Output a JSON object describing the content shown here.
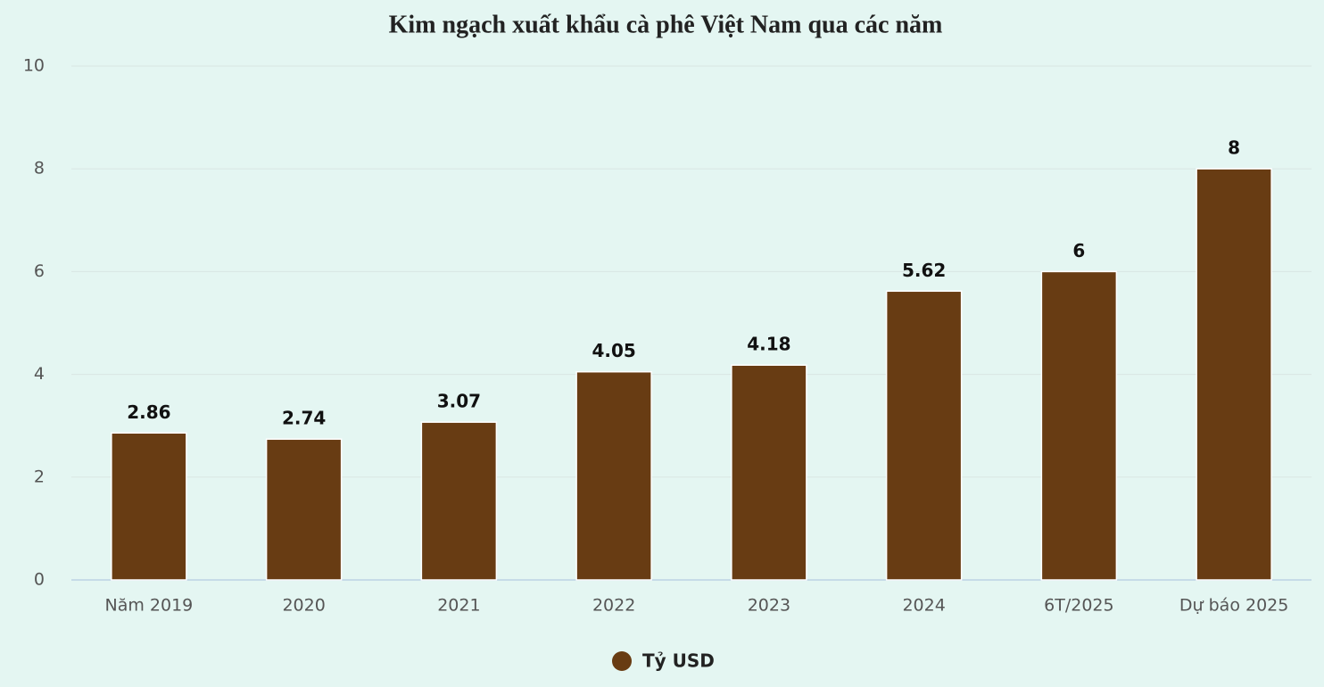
{
  "chart_data": {
    "type": "bar",
    "title": "Kim ngạch xuất khẩu cà phê Việt Nam qua các năm",
    "categories": [
      "Năm 2019",
      "2020",
      "2021",
      "2022",
      "2023",
      "2024",
      "6T/2025",
      "Dự báo 2025"
    ],
    "series": [
      {
        "name": "Tỷ USD",
        "color": "#683c13",
        "values": [
          2.86,
          2.74,
          3.07,
          4.05,
          4.18,
          5.62,
          6,
          8
        ]
      }
    ],
    "ylim": [
      0,
      10
    ],
    "yticks": [
      0,
      2,
      4,
      6,
      8,
      10
    ],
    "grid": true,
    "legend": "bottom"
  }
}
